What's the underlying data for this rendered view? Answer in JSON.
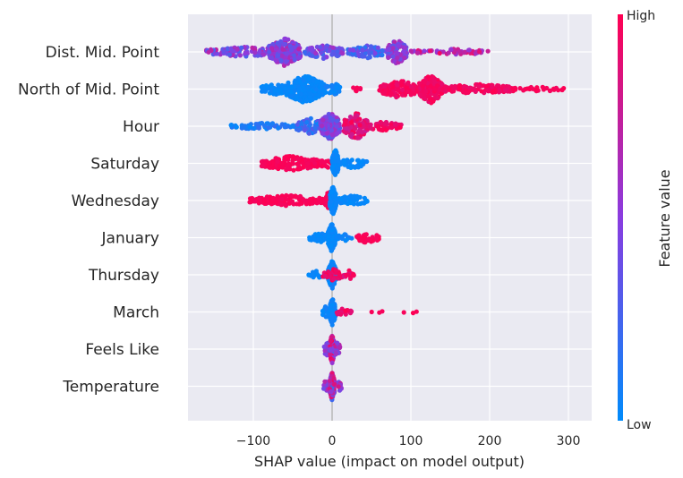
{
  "chart_data": {
    "type": "scatter",
    "subtype": "shap-beeswarm",
    "title": "",
    "xlabel": "SHAP value (impact on model output)",
    "xlim": [
      -180,
      325
    ],
    "x_ticks": [
      "−100",
      "0",
      "100",
      "200",
      "300"
    ],
    "x_tick_values": [
      -100,
      0,
      100,
      200,
      300
    ],
    "grid": true,
    "zero_line": true,
    "colorbar": {
      "label": "Feature value",
      "high_label": "High",
      "low_label": "Low",
      "high_color": "#ff0052",
      "low_color": "#008bfb"
    },
    "features": [
      {
        "name": "Dist. Mid. Point",
        "clusters": [
          {
            "x": [
              -160,
              -55
            ],
            "count": 140,
            "v": [
              0.25,
              0.75
            ]
          },
          {
            "x": [
              -80,
              -40
            ],
            "count": 220,
            "v": [
              0.3,
              0.7
            ]
          },
          {
            "x": [
              -35,
              15
            ],
            "count": 90,
            "v": [
              0.2,
              0.6
            ]
          },
          {
            "x": [
              20,
              70
            ],
            "count": 80,
            "v": [
              0.1,
              0.5
            ]
          },
          {
            "x": [
              70,
              95
            ],
            "count": 90,
            "v": [
              0.3,
              0.7
            ]
          },
          {
            "x": [
              100,
              200
            ],
            "count": 60,
            "v": [
              0.5,
              0.95
            ]
          }
        ]
      },
      {
        "name": "North of Mid. Point",
        "clusters": [
          {
            "x": [
              -90,
              -55
            ],
            "count": 50,
            "v": [
              0.0,
              0.05
            ]
          },
          {
            "x": [
              -60,
              -10
            ],
            "count": 260,
            "v": [
              0.0,
              0.05
            ]
          },
          {
            "x": [
              -10,
              10
            ],
            "count": 40,
            "v": [
              0.0,
              0.08
            ]
          },
          {
            "x": [
              20,
              40
            ],
            "count": 6,
            "v": [
              0.95,
              1.0
            ]
          },
          {
            "x": [
              60,
              110
            ],
            "count": 120,
            "v": [
              0.9,
              1.0
            ]
          },
          {
            "x": [
              110,
              140
            ],
            "count": 150,
            "v": [
              0.9,
              1.0
            ]
          },
          {
            "x": [
              140,
              230
            ],
            "count": 120,
            "v": [
              0.9,
              1.0
            ]
          },
          {
            "x": [
              230,
              302
            ],
            "count": 30,
            "v": [
              0.95,
              1.0
            ]
          }
        ]
      },
      {
        "name": "Hour",
        "clusters": [
          {
            "x": [
              -130,
              -45
            ],
            "count": 60,
            "v": [
              0.0,
              0.2
            ]
          },
          {
            "x": [
              -45,
              -10
            ],
            "count": 80,
            "v": [
              0.0,
              0.35
            ]
          },
          {
            "x": [
              -15,
              10
            ],
            "count": 160,
            "v": [
              0.25,
              0.65
            ]
          },
          {
            "x": [
              15,
              45
            ],
            "count": 120,
            "v": [
              0.75,
              1.0
            ]
          },
          {
            "x": [
              45,
              88
            ],
            "count": 50,
            "v": [
              0.85,
              1.0
            ]
          }
        ]
      },
      {
        "name": "Saturday",
        "clusters": [
          {
            "x": [
              -90,
              -15
            ],
            "count": 150,
            "v": [
              0.95,
              1.0
            ]
          },
          {
            "x": [
              -15,
              0
            ],
            "count": 20,
            "v": [
              0.95,
              1.0
            ]
          },
          {
            "x": [
              0,
              8
            ],
            "count": 140,
            "v": [
              0.0,
              0.05
            ]
          },
          {
            "x": [
              8,
              45
            ],
            "count": 45,
            "v": [
              0.0,
              0.05
            ]
          }
        ]
      },
      {
        "name": "Wednesday",
        "clusters": [
          {
            "x": [
              -105,
              -10
            ],
            "count": 130,
            "v": [
              0.95,
              1.0
            ]
          },
          {
            "x": [
              -10,
              2
            ],
            "count": 30,
            "v": [
              0.95,
              1.0
            ]
          },
          {
            "x": [
              -3,
              5
            ],
            "count": 150,
            "v": [
              0.0,
              0.05
            ]
          },
          {
            "x": [
              5,
              45
            ],
            "count": 50,
            "v": [
              0.0,
              0.05
            ]
          }
        ]
      },
      {
        "name": "January",
        "clusters": [
          {
            "x": [
              -30,
              -5
            ],
            "count": 35,
            "v": [
              0.0,
              0.05
            ]
          },
          {
            "x": [
              -5,
              4
            ],
            "count": 160,
            "v": [
              0.0,
              0.05
            ]
          },
          {
            "x": [
              5,
              25
            ],
            "count": 15,
            "v": [
              0.0,
              0.1
            ]
          },
          {
            "x": [
              30,
              60
            ],
            "count": 40,
            "v": [
              0.95,
              1.0
            ]
          }
        ]
      },
      {
        "name": "Thursday",
        "clusters": [
          {
            "x": [
              -30,
              -5
            ],
            "count": 25,
            "v": [
              0.0,
              0.05
            ]
          },
          {
            "x": [
              -5,
              5
            ],
            "count": 150,
            "v": [
              0.0,
              0.1
            ]
          },
          {
            "x": [
              -12,
              15
            ],
            "count": 40,
            "v": [
              0.85,
              1.0
            ]
          },
          {
            "x": [
              15,
              28
            ],
            "count": 15,
            "v": [
              0.8,
              1.0
            ]
          }
        ]
      },
      {
        "name": "March",
        "clusters": [
          {
            "x": [
              -12,
              -2
            ],
            "count": 20,
            "v": [
              0.0,
              0.08
            ]
          },
          {
            "x": [
              -3,
              4
            ],
            "count": 150,
            "v": [
              0.0,
              0.08
            ]
          },
          {
            "x": [
              5,
              25
            ],
            "count": 20,
            "v": [
              0.85,
              1.0
            ]
          },
          {
            "x": [
              48,
              65
            ],
            "count": 3,
            "v": [
              0.95,
              1.0
            ]
          },
          {
            "x": [
              90,
              115
            ],
            "count": 3,
            "v": [
              0.95,
              1.0
            ]
          }
        ]
      },
      {
        "name": "Feels Like",
        "clusters": [
          {
            "x": [
              -10,
              -3
            ],
            "count": 15,
            "v": [
              0.3,
              0.7
            ]
          },
          {
            "x": [
              -3,
              3
            ],
            "count": 150,
            "v": [
              0.2,
              1.0
            ]
          },
          {
            "x": [
              3,
              10
            ],
            "count": 15,
            "v": [
              0.3,
              0.8
            ]
          }
        ]
      },
      {
        "name": "Temperature",
        "clusters": [
          {
            "x": [
              -12,
              -3
            ],
            "count": 15,
            "v": [
              0.3,
              0.7
            ]
          },
          {
            "x": [
              -3,
              3
            ],
            "count": 150,
            "v": [
              0.2,
              1.0
            ]
          },
          {
            "x": [
              3,
              12
            ],
            "count": 15,
            "v": [
              0.4,
              0.9
            ]
          }
        ]
      }
    ]
  }
}
